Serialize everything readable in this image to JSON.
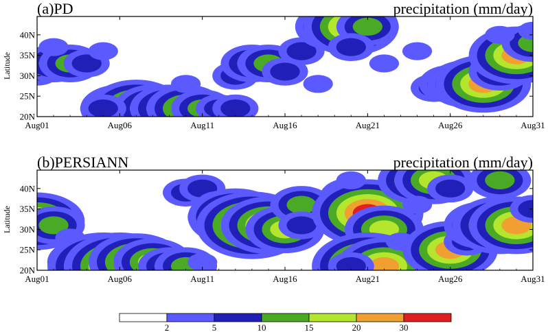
{
  "chart_data": [
    {
      "type": "heatmap",
      "panel_label": "(a)PD",
      "title_right": "precipitation (mm/day)",
      "ylabel": "Latitude",
      "xticks": [
        "Aug01",
        "Aug06",
        "Aug11",
        "Aug16",
        "Aug21",
        "Aug26",
        "Aug31"
      ],
      "xtick_days": [
        1,
        6,
        11,
        16,
        21,
        26,
        31
      ],
      "yticks": [
        "20N",
        "25N",
        "30N",
        "35N",
        "40N"
      ],
      "ytick_values": [
        20,
        25,
        30,
        35,
        40
      ],
      "xlim": [
        1,
        31
      ],
      "ylim": [
        20,
        44.5
      ],
      "cells": [
        {
          "day": 1,
          "lat": 31,
          "v": 5
        },
        {
          "day": 2,
          "lat": 33,
          "v": 12
        },
        {
          "day": 3,
          "lat": 33,
          "v": 12
        },
        {
          "day": 4,
          "lat": 33,
          "v": 7
        },
        {
          "day": 2,
          "lat": 37,
          "v": 3
        },
        {
          "day": 5,
          "lat": 36,
          "v": 3
        },
        {
          "day": 6,
          "lat": 22,
          "v": 18
        },
        {
          "day": 7,
          "lat": 22,
          "v": 24
        },
        {
          "day": 8,
          "lat": 22,
          "v": 18
        },
        {
          "day": 9,
          "lat": 22,
          "v": 17
        },
        {
          "day": 10,
          "lat": 22,
          "v": 17
        },
        {
          "day": 11,
          "lat": 22,
          "v": 12
        },
        {
          "day": 12,
          "lat": 22,
          "v": 8
        },
        {
          "day": 13,
          "lat": 22,
          "v": 7
        },
        {
          "day": 5,
          "lat": 22,
          "v": 7
        },
        {
          "day": 10,
          "lat": 28,
          "v": 4
        },
        {
          "day": 13,
          "lat": 30,
          "v": 5
        },
        {
          "day": 14,
          "lat": 33,
          "v": 12
        },
        {
          "day": 15,
          "lat": 33,
          "v": 13
        },
        {
          "day": 16,
          "lat": 31,
          "v": 6
        },
        {
          "day": 17,
          "lat": 36,
          "v": 7
        },
        {
          "day": 18,
          "lat": 28,
          "v": 4
        },
        {
          "day": 19,
          "lat": 42,
          "v": 17
        },
        {
          "day": 20,
          "lat": 42,
          "v": 24
        },
        {
          "day": 21,
          "lat": 42,
          "v": 13
        },
        {
          "day": 20,
          "lat": 37,
          "v": 6
        },
        {
          "day": 22,
          "lat": 33,
          "v": 4
        },
        {
          "day": 24,
          "lat": 36,
          "v": 4
        },
        {
          "day": 25,
          "lat": 27,
          "v": 5
        },
        {
          "day": 26,
          "lat": 28,
          "v": 12
        },
        {
          "day": 27,
          "lat": 28,
          "v": 18
        },
        {
          "day": 28,
          "lat": 28,
          "v": 22
        },
        {
          "day": 29,
          "lat": 31,
          "v": 13
        },
        {
          "day": 30,
          "lat": 35,
          "v": 24
        },
        {
          "day": 31,
          "lat": 38,
          "v": 13
        },
        {
          "day": 29,
          "lat": 40,
          "v": 4
        },
        {
          "day": 31,
          "lat": 41,
          "v": 4
        }
      ]
    },
    {
      "type": "heatmap",
      "panel_label": "(b)PERSIANN",
      "title_right": "precipitation (mm/day)",
      "ylabel": "Latitude",
      "xticks": [
        "Aug01",
        "Aug06",
        "Aug11",
        "Aug16",
        "Aug21",
        "Aug26",
        "Aug31"
      ],
      "xtick_days": [
        1,
        6,
        11,
        16,
        21,
        26,
        31
      ],
      "yticks": [
        "20N",
        "25N",
        "30N",
        "35N",
        "40N"
      ],
      "ytick_values": [
        20,
        25,
        30,
        35,
        40
      ],
      "xlim": [
        1,
        31
      ],
      "ylim": [
        20,
        44.5
      ],
      "cells": [
        {
          "day": 1,
          "lat": 32,
          "v": 24
        },
        {
          "day": 2,
          "lat": 31,
          "v": 12
        },
        {
          "day": 3,
          "lat": 28,
          "v": 4
        },
        {
          "day": 4,
          "lat": 22,
          "v": 18
        },
        {
          "day": 5,
          "lat": 21,
          "v": 32
        },
        {
          "day": 6,
          "lat": 21,
          "v": 33
        },
        {
          "day": 7,
          "lat": 22,
          "v": 24
        },
        {
          "day": 8,
          "lat": 22,
          "v": 17
        },
        {
          "day": 9,
          "lat": 21,
          "v": 12
        },
        {
          "day": 10,
          "lat": 21,
          "v": 13
        },
        {
          "day": 11,
          "lat": 22,
          "v": 4
        },
        {
          "day": 10,
          "lat": 39,
          "v": 8
        },
        {
          "day": 11,
          "lat": 40,
          "v": 6
        },
        {
          "day": 12,
          "lat": 36,
          "v": 5
        },
        {
          "day": 12,
          "lat": 33,
          "v": 13
        },
        {
          "day": 13,
          "lat": 33,
          "v": 24
        },
        {
          "day": 14,
          "lat": 31,
          "v": 32
        },
        {
          "day": 15,
          "lat": 31,
          "v": 24
        },
        {
          "day": 16,
          "lat": 30,
          "v": 18
        },
        {
          "day": 17,
          "lat": 36,
          "v": 14
        },
        {
          "day": 17,
          "lat": 31,
          "v": 6
        },
        {
          "day": 20,
          "lat": 38,
          "v": 13
        },
        {
          "day": 21,
          "lat": 34,
          "v": 32
        },
        {
          "day": 22,
          "lat": 30,
          "v": 16
        },
        {
          "day": 20,
          "lat": 42,
          "v": 4
        },
        {
          "day": 21,
          "lat": 21,
          "v": 32
        },
        {
          "day": 22,
          "lat": 21,
          "v": 22
        },
        {
          "day": 20,
          "lat": 21,
          "v": 6
        },
        {
          "day": 23,
          "lat": 27,
          "v": 4
        },
        {
          "day": 24,
          "lat": 42,
          "v": 17
        },
        {
          "day": 25,
          "lat": 42,
          "v": 18
        },
        {
          "day": 26,
          "lat": 40,
          "v": 6
        },
        {
          "day": 26,
          "lat": 25,
          "v": 24
        },
        {
          "day": 27,
          "lat": 27,
          "v": 7
        },
        {
          "day": 28,
          "lat": 31,
          "v": 16
        },
        {
          "day": 29,
          "lat": 31,
          "v": 24
        },
        {
          "day": 30,
          "lat": 31,
          "v": 22
        },
        {
          "day": 29,
          "lat": 42,
          "v": 13
        },
        {
          "day": 31,
          "lat": 35,
          "v": 5
        },
        {
          "day": 24,
          "lat": 36,
          "v": 4
        }
      ]
    }
  ],
  "colorbar": {
    "levels": [
      "2",
      "5",
      "10",
      "15",
      "20",
      "30"
    ],
    "colors": [
      "#ffffff",
      "#5a5aff",
      "#2020b8",
      "#4aaa26",
      "#b4e62e",
      "#f0a030",
      "#e02020"
    ]
  }
}
